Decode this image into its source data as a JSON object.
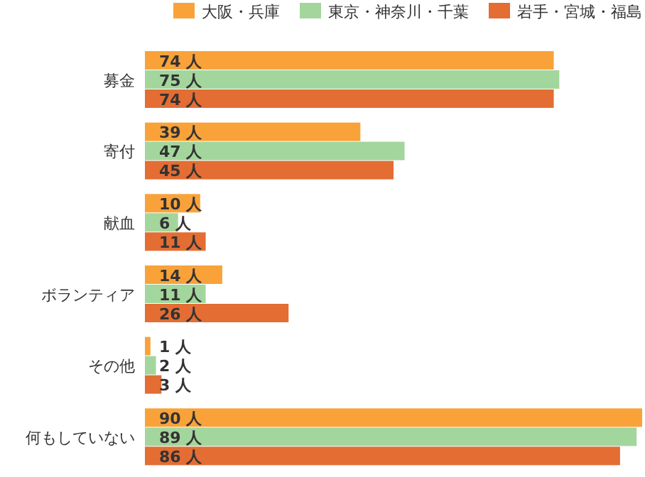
{
  "chart_data": {
    "type": "bar",
    "orientation": "horizontal",
    "legend": "top right",
    "categories": [
      "募金",
      "寄付",
      "献血",
      "ボランティア",
      "その他",
      "何もしていない"
    ],
    "series": [
      {
        "name": "大阪・兵庫",
        "color": "#f9a23a",
        "values": [
          74,
          39,
          10,
          14,
          1,
          90
        ],
        "value_labels": [
          "74 人",
          "39 人",
          "10 人",
          "14 人",
          "1 人",
          "90 人"
        ]
      },
      {
        "name": "東京・神奈川・千葉",
        "color": "#a3d69c",
        "values": [
          75,
          47,
          6,
          11,
          2,
          89
        ],
        "value_labels": [
          "75 人",
          "47 人",
          "6 人",
          "11 人",
          "2 人",
          "89 人"
        ]
      },
      {
        "name": "岩手・宮城・福島",
        "color": "#e36d33",
        "values": [
          74,
          45,
          11,
          26,
          3,
          86
        ],
        "value_labels": [
          "74 人",
          "45 人",
          "11 人",
          "26 人",
          "3 人",
          "86 人"
        ]
      }
    ]
  }
}
